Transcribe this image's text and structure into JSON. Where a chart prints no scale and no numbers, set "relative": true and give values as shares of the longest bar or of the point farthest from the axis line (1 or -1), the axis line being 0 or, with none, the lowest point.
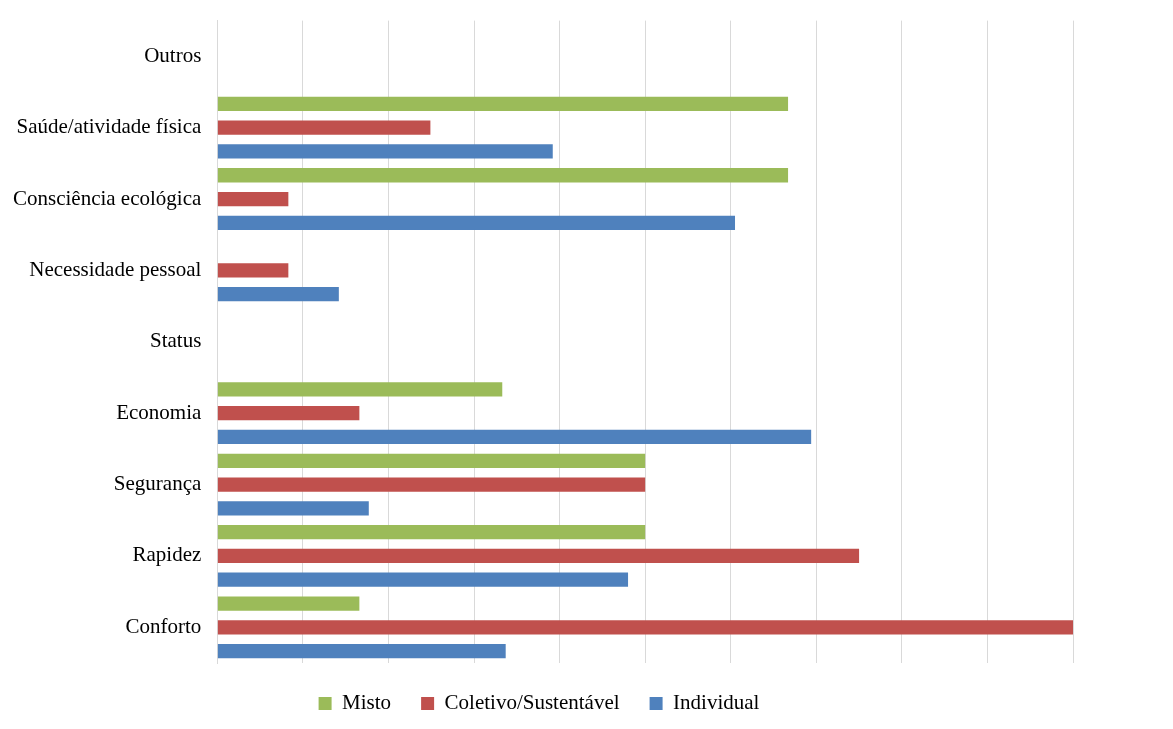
{
  "chart_data": {
    "type": "bar",
    "orientation": "horizontal",
    "relative": true,
    "grid": "x",
    "legend": "bottom",
    "tick_labels": "y",
    "categories": [
      "Outros",
      "Saúde/atividade física",
      "Consciência ecológica",
      "Necessidade pessoal",
      "Status",
      "Economia",
      "Segurança",
      "Rapidez",
      "Conforto"
    ],
    "series": [
      {
        "name": "Misto",
        "color": "#9bbb59",
        "values": [
          0,
          0.667,
          0.667,
          0,
          0,
          0.333,
          0.5,
          0.5,
          0.166
        ]
      },
      {
        "name": "Coletivo/Sustentável",
        "color": "#c0504d",
        "values": [
          0,
          0.249,
          0.083,
          0.083,
          0,
          0.166,
          0.5,
          0.75,
          1
        ]
      },
      {
        "name": "Individual",
        "color": "#4f81bd",
        "values": [
          0,
          0.392,
          0.605,
          0.142,
          0,
          0.694,
          0.177,
          0.48,
          0.337
        ]
      }
    ]
  }
}
